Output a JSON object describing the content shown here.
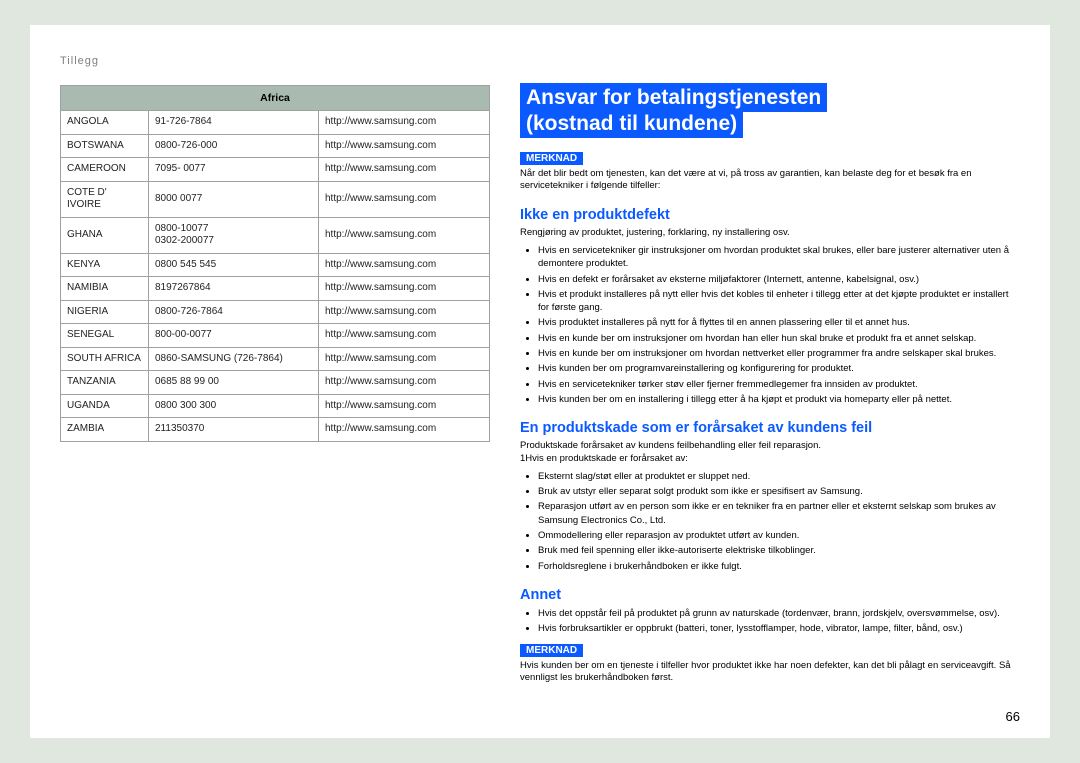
{
  "header": {
    "section_label": "Tillegg"
  },
  "table": {
    "region_header": "Africa",
    "header_bg": "#a9bab0",
    "border_color": "#a0a0a0",
    "rows": [
      {
        "country": "ANGOLA",
        "phone": "91-726-7864",
        "url": "http://www.samsung.com"
      },
      {
        "country": "BOTSWANA",
        "phone": "0800-726-000",
        "url": "http://www.samsung.com"
      },
      {
        "country": "CAMEROON",
        "phone": "7095- 0077",
        "url": "http://www.samsung.com"
      },
      {
        "country": "COTE D' IVOIRE",
        "phone": "8000 0077",
        "url": "http://www.samsung.com"
      },
      {
        "country": "GHANA",
        "phone": "0800-10077\n0302-200077",
        "url": "http://www.samsung.com"
      },
      {
        "country": "KENYA",
        "phone": "0800 545 545",
        "url": "http://www.samsung.com"
      },
      {
        "country": "NAMIBIA",
        "phone": "8197267864",
        "url": "http://www.samsung.com"
      },
      {
        "country": "NIGERIA",
        "phone": "0800-726-7864",
        "url": "http://www.samsung.com"
      },
      {
        "country": "SENEGAL",
        "phone": "800-00-0077",
        "url": "http://www.samsung.com"
      },
      {
        "country": "SOUTH AFRICA",
        "phone": "0860-SAMSUNG (726-7864)",
        "url": "http://www.samsung.com"
      },
      {
        "country": "TANZANIA",
        "phone": "0685 88 99 00",
        "url": "http://www.samsung.com"
      },
      {
        "country": "UGANDA",
        "phone": "0800 300 300",
        "url": "http://www.samsung.com"
      },
      {
        "country": "ZAMBIA",
        "phone": "211350370",
        "url": "http://www.samsung.com"
      }
    ]
  },
  "content": {
    "main_title_line1": "Ansvar for betalingstjenesten",
    "main_title_line2": "(kostnad til kundene)",
    "note_label": "MERKNAD",
    "top_note": "Når det blir bedt om tjenesten, kan det være at vi, på tross av garantien, kan belaste deg for et besøk fra en servicetekniker i følgende tilfeller:",
    "section1_heading": "Ikke en produktdefekt",
    "section1_intro": "Rengjøring av produktet, justering, forklaring, ny installering osv.",
    "section1_bullets": [
      "Hvis en servicetekniker gir instruksjoner om hvordan produktet skal brukes, eller bare justerer alternativer uten å demontere produktet.",
      "Hvis en defekt er forårsaket av eksterne miljøfaktorer (Internett, antenne, kabelsignal, osv.)",
      "Hvis et produkt installeres på nytt eller hvis det kobles til enheter i tillegg etter at det kjøpte produktet er installert for første gang.",
      "Hvis produktet installeres på nytt for å flyttes til en annen plassering eller til et annet hus.",
      "Hvis en kunde ber om instruksjoner om hvordan han eller hun skal bruke et produkt fra et annet selskap.",
      "Hvis en kunde ber om instruksjoner om hvordan nettverket eller programmer fra andre selskaper skal brukes.",
      "Hvis kunden ber om programvareinstallering og konfigurering for produktet.",
      "Hvis en servicetekniker tørker støv eller fjerner fremmedlegemer fra innsiden av produktet.",
      "Hvis kunden ber om en installering i tillegg etter å ha kjøpt et produkt via homeparty eller på nettet."
    ],
    "section2_heading": "En produktskade som er forårsaket av kundens feil",
    "section2_intro1": "Produktskade forårsaket av kundens feilbehandling eller feil reparasjon.",
    "section2_intro2": "1Hvis en produktskade er forårsaket av:",
    "section2_bullets": [
      "Eksternt slag/støt eller at produktet er sluppet ned.",
      "Bruk av utstyr eller separat solgt produkt som ikke er spesifisert av Samsung.",
      "Reparasjon utført av en person som ikke er en tekniker fra en partner eller et eksternt selskap som brukes av Samsung Electronics Co., Ltd.",
      "Ommodellering eller reparasjon av produktet utført av kunden.",
      "Bruk med feil spenning eller ikke-autoriserte elektriske tilkoblinger.",
      "Forholdsreglene i brukerhåndboken er ikke fulgt."
    ],
    "section3_heading": "Annet",
    "section3_bullets": [
      "Hvis det oppstår feil på produktet på grunn av naturskade (tordenvær, brann, jordskjelv, oversvømmelse, osv).",
      "Hvis forbruksartikler er oppbrukt (batteri, toner, lysstofflamper, hode, vibrator, lampe, filter, bånd, osv.)"
    ],
    "bottom_note": "Hvis kunden ber om en tjeneste i tilfeller hvor produktet ikke har noen defekter, kan det bli pålagt en serviceavgift. Så vennligst les brukerhåndboken først."
  },
  "page_number": "66",
  "colors": {
    "page_bg": "#dfe7df",
    "sheet_bg": "#ffffff",
    "accent_blue": "#0a5aff",
    "table_header_bg": "#a9bab0",
    "border": "#a0a0a0",
    "muted_text": "#808080"
  }
}
